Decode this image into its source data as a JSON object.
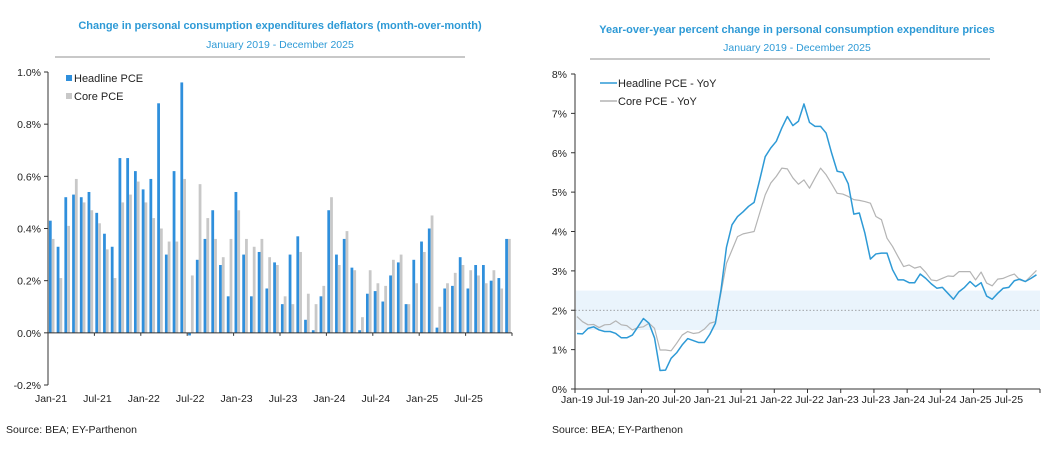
{
  "chart_data": [
    {
      "type": "bar",
      "title": "Change in personal consumption expenditures deflators (month-over-month)",
      "subtitle": "January 2019 - December 2025",
      "source": "Source: BEA; EY-Parthenon",
      "ylim": [
        -0.2,
        1.0
      ],
      "yticks": [
        "-0.2%",
        "0.0%",
        "0.2%",
        "0.4%",
        "0.6%",
        "0.8%",
        "1.0%"
      ],
      "ytick_values": [
        -0.2,
        0,
        0.2,
        0.4,
        0.6,
        0.8,
        1.0
      ],
      "xtick_labels": [
        "Jan-21",
        "Jul-21",
        "Jan-22",
        "Jul-22",
        "Jan-23",
        "Jul-23",
        "Jan-24",
        "Jul-24",
        "Jan-25",
        "Jul-25"
      ],
      "start": "Jan-21",
      "legend_position": "top-left",
      "series": [
        {
          "name": "Headline PCE",
          "color": "#2f8fdc",
          "values": [
            0.43,
            0.33,
            0.52,
            0.53,
            0.52,
            0.54,
            0.46,
            0.38,
            0.33,
            0.67,
            0.67,
            0.62,
            0.55,
            0.59,
            0.88,
            0.3,
            0.62,
            0.96,
            -0.01,
            0.28,
            0.36,
            0.47,
            0.26,
            0.14,
            0.54,
            0.3,
            0.14,
            0.31,
            0.17,
            0.27,
            0.11,
            0.3,
            0.37,
            0.05,
            0.01,
            0.14,
            0.47,
            0.3,
            0.36,
            0.25,
            0.01,
            0.15,
            0.16,
            0.12,
            0.22,
            0.27,
            0.11,
            0.28,
            0.35,
            0.4,
            0.02,
            0.17,
            0.18,
            0.29,
            0.17,
            0.26,
            0.26,
            0.2,
            0.21,
            0.36
          ]
        },
        {
          "name": "Core PCE",
          "color": "#c8c8c8",
          "values": [
            0.36,
            0.21,
            0.41,
            0.59,
            0.5,
            0.47,
            0.42,
            0.32,
            0.21,
            0.5,
            0.53,
            0.58,
            0.5,
            0.44,
            0.4,
            0.35,
            0.35,
            0.59,
            0.22,
            0.57,
            0.44,
            0.36,
            0.29,
            0.36,
            0.47,
            0.36,
            0.33,
            0.36,
            0.29,
            0.26,
            0.14,
            0.11,
            0.31,
            0.15,
            0.11,
            0.18,
            0.52,
            0.26,
            0.39,
            0.24,
            0.06,
            0.24,
            0.19,
            0.18,
            0.28,
            0.3,
            0.11,
            0.19,
            0.31,
            0.45,
            0.1,
            0.19,
            0.23,
            0.26,
            0.24,
            0.22,
            0.19,
            0.24,
            0.17,
            0.36
          ]
        }
      ]
    },
    {
      "type": "line",
      "title": "Year-over-year percent change in personal consumption expenditure prices",
      "subtitle": "January 2019 - December 2025",
      "source": "Source: BEA; EY-Parthenon",
      "ylim": [
        0,
        8
      ],
      "yticks": [
        "0%",
        "1%",
        "2%",
        "3%",
        "4%",
        "5%",
        "6%",
        "7%",
        "8%"
      ],
      "ytick_values": [
        0,
        1,
        2,
        3,
        4,
        5,
        6,
        7,
        8
      ],
      "xtick_labels": [
        "Jan-19",
        "Jul-19",
        "Jan-20",
        "Jul-20",
        "Jan-21",
        "Jul-21",
        "Jan-22",
        "Jul-22",
        "Jan-23",
        "Jul-23",
        "Jan-24",
        "Jul-24",
        "Jan-25",
        "Jul-25"
      ],
      "start": "Jan-19",
      "legend_position": "top-left",
      "target_band": [
        1.5,
        2.5
      ],
      "target_line": 2,
      "series": [
        {
          "name": "Headline PCE - YoY",
          "color": "#2e9ad6",
          "values": [
            1.41,
            1.4,
            1.54,
            1.58,
            1.5,
            1.46,
            1.46,
            1.41,
            1.3,
            1.3,
            1.37,
            1.58,
            1.79,
            1.67,
            1.3,
            0.47,
            0.48,
            0.78,
            0.92,
            1.12,
            1.28,
            1.23,
            1.18,
            1.18,
            1.39,
            1.67,
            2.5,
            3.6,
            4.17,
            4.38,
            4.5,
            4.64,
            4.74,
            5.31,
            5.9,
            6.12,
            6.29,
            6.63,
            6.92,
            6.69,
            6.8,
            7.24,
            6.77,
            6.67,
            6.67,
            6.5,
            5.99,
            5.53,
            5.5,
            5.21,
            4.44,
            4.47,
            3.96,
            3.3,
            3.43,
            3.45,
            3.45,
            3.03,
            2.77,
            2.77,
            2.7,
            2.7,
            2.92,
            2.81,
            2.67,
            2.56,
            2.58,
            2.43,
            2.28,
            2.47,
            2.58,
            2.73,
            2.6,
            2.7,
            2.36,
            2.28,
            2.43,
            2.56,
            2.58,
            2.75,
            2.79,
            2.73,
            2.81,
            2.9
          ]
        },
        {
          "name": "Core PCE - YoY",
          "color": "#b4b4b4",
          "values": [
            1.84,
            1.71,
            1.63,
            1.64,
            1.56,
            1.63,
            1.64,
            1.73,
            1.63,
            1.61,
            1.5,
            1.56,
            1.58,
            1.67,
            1.54,
            0.99,
            0.99,
            0.97,
            1.16,
            1.37,
            1.46,
            1.41,
            1.43,
            1.52,
            1.67,
            1.71,
            2.43,
            3.19,
            3.53,
            3.87,
            3.94,
            3.97,
            4.0,
            4.47,
            4.93,
            5.23,
            5.4,
            5.61,
            5.59,
            5.36,
            5.2,
            5.31,
            5.1,
            5.36,
            5.61,
            5.44,
            5.21,
            4.97,
            4.95,
            4.89,
            4.81,
            4.79,
            4.76,
            4.72,
            4.38,
            4.3,
            3.83,
            3.62,
            3.36,
            3.11,
            3.15,
            3.07,
            3.11,
            2.96,
            2.77,
            2.75,
            2.81,
            2.87,
            2.86,
            2.98,
            2.98,
            2.98,
            2.77,
            2.97,
            2.69,
            2.62,
            2.79,
            2.81,
            2.87,
            2.92,
            2.77,
            2.73,
            2.87,
            3.01
          ]
        }
      ]
    }
  ]
}
